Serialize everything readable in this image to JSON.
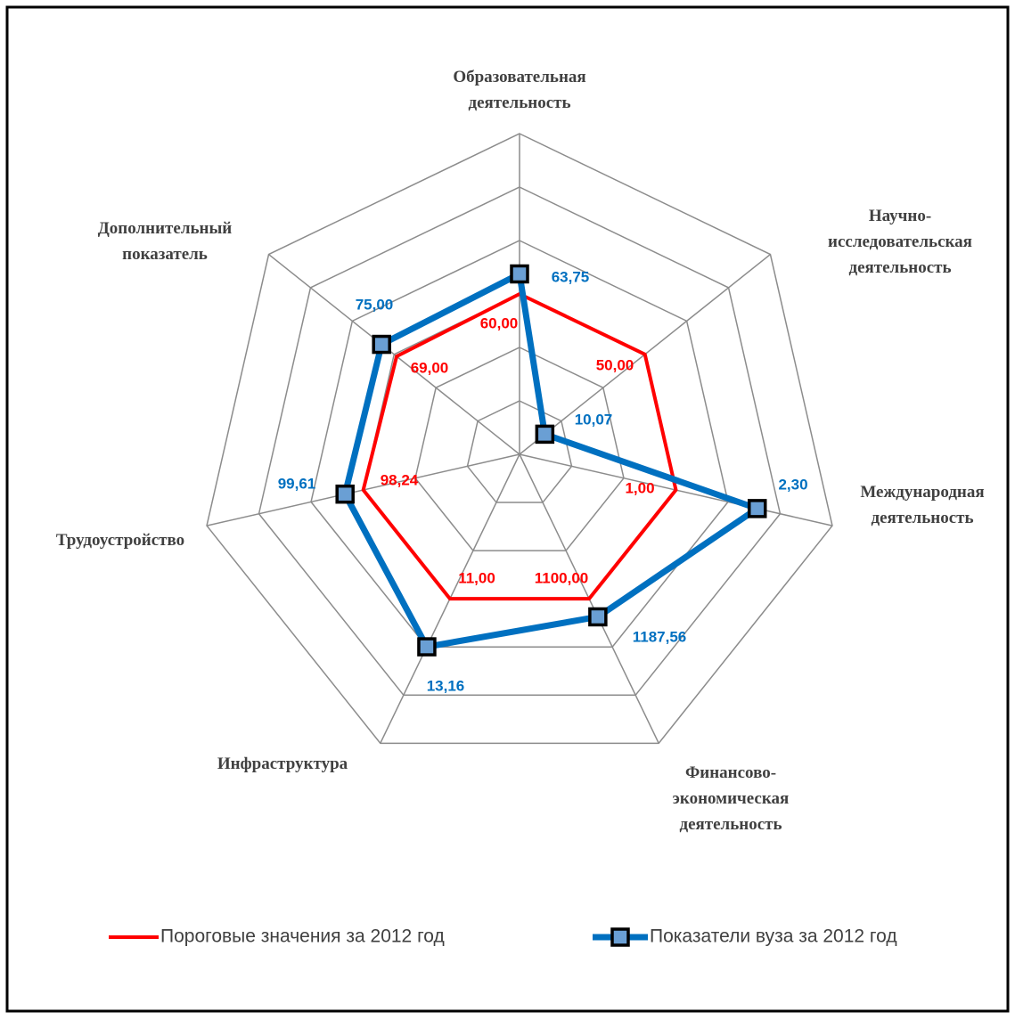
{
  "chart_data": {
    "type": "radar",
    "categories": [
      "Образовательная деятельность",
      "Научно-исследовательская деятельность",
      "Международная деятельность",
      "Финансово-экономическая деятельность",
      "Инфраструктура",
      "Трудоустройство",
      "Дополнительный показатель"
    ],
    "axis_lims": [
      [
        30,
        90
      ],
      [
        0,
        100
      ],
      [
        -1.5,
        3.5
      ],
      [
        400,
        1800
      ],
      [
        4.5,
        17.5
      ],
      [
        86.5,
        110
      ],
      [
        20,
        120
      ]
    ],
    "grid": true,
    "grid_rings": 6,
    "legend": "bottom",
    "series": [
      {
        "name": "Пороговые значения за 2012 год",
        "color": "#ff0000",
        "values": [
          60,
          50,
          1,
          1100,
          11,
          98.24,
          69
        ],
        "value_labels": [
          "60,00",
          "50,00",
          "1,00",
          "1100,00",
          "11,00",
          "98,24",
          "69,00"
        ]
      },
      {
        "name": "Показатели вуза за 2012 год",
        "color": "#0070c0",
        "marker_color": "#6a9fd4",
        "values": [
          63.75,
          10.07,
          2.3,
          1187.56,
          13.16,
          99.61,
          75
        ],
        "value_labels": [
          "63,75",
          "10,07",
          "2,30",
          "1187,56",
          "13,16",
          "99,61",
          "75,00"
        ]
      }
    ]
  }
}
